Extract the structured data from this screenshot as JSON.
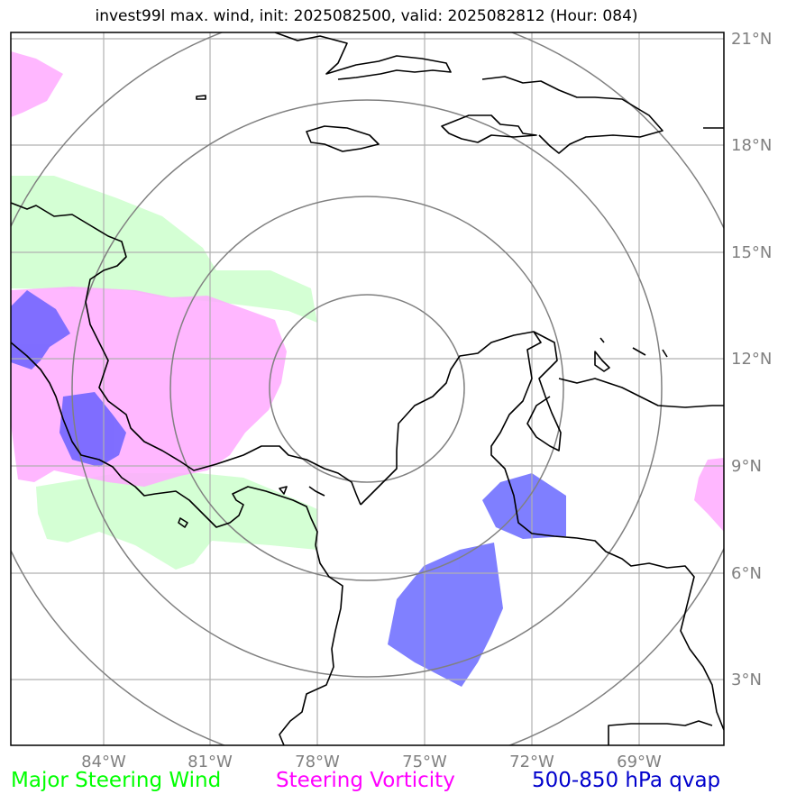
{
  "title": "invest99l max. wind, init: 2025082500, valid: 2025082812 (Hour: 084)",
  "map": {
    "lon_ticks": [
      "84°W",
      "81°W",
      "78°W",
      "75°W",
      "72°W",
      "69°W"
    ],
    "lat_ticks": [
      "21°N",
      "18°N",
      "15°N",
      "12°N",
      "9°N",
      "6°N",
      "3°N"
    ],
    "lon_range": [
      -86.6,
      -66.5
    ],
    "lat_range": [
      1.3,
      21.3
    ]
  },
  "legend": {
    "steering_wind": {
      "label": "Major Steering Wind",
      "color": "#00ff00"
    },
    "steering_vorticity": {
      "label": "Steering Vorticity",
      "color": "#ff00ff"
    },
    "qvap": {
      "label": "500-850 hPa qvap",
      "color": "#0000cc"
    }
  },
  "colors": {
    "wind_fill": "#ccffcc",
    "vorticity_fill": "#ffaaff",
    "qvap_fill": "#6f6fff",
    "grid": "#b0b0b0",
    "range_rings": "#808080",
    "coastline": "#000000"
  }
}
